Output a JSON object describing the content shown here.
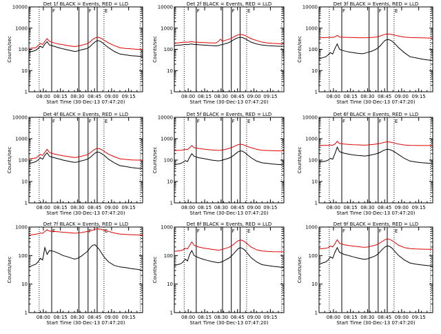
{
  "figure": {
    "ylabel": "Counts/sec",
    "xlabel": "Start Time (30-Dec-13 07:47:20)",
    "ytick_labels": [
      "1",
      "10",
      "100",
      "1000",
      "10000"
    ],
    "xtick_labels": [
      "08:00",
      "08:15",
      "08:30",
      "08:45",
      "09:00",
      "09:15"
    ],
    "flag_letters": [
      "F",
      "F",
      "E"
    ],
    "colors": {
      "events": "#000000",
      "lld": "#e00000",
      "axes": "#000000",
      "background": "#ffffff"
    }
  },
  "chart_data": [
    {
      "type": "line",
      "title": "Det 1f BLACK = Events, RED = LLD",
      "x_minutes": [
        0,
        3,
        6,
        8,
        10,
        12,
        14,
        16,
        18,
        22,
        26,
        30,
        34,
        38,
        40,
        42,
        44,
        46,
        48,
        50,
        52,
        54,
        56,
        58,
        60,
        62,
        64,
        66,
        70,
        75,
        80,
        85,
        90,
        95,
        100
      ],
      "xlim": [
        0,
        100
      ],
      "ylim": [
        1,
        10000
      ],
      "yscale": "log",
      "series": [
        {
          "key": "events",
          "values": [
            75,
            80,
            90,
            110,
            140,
            120,
            180,
            230,
            160,
            140,
            120,
            105,
            95,
            85,
            80,
            82,
            88,
            95,
            100,
            105,
            115,
            140,
            180,
            220,
            260,
            250,
            220,
            180,
            120,
            80,
            60,
            55,
            50,
            48,
            45
          ]
        },
        {
          "key": "lld",
          "values": [
            110,
            115,
            120,
            150,
            190,
            170,
            240,
            320,
            240,
            200,
            180,
            165,
            150,
            140,
            135,
            140,
            145,
            155,
            165,
            175,
            195,
            230,
            290,
            340,
            370,
            360,
            320,
            270,
            200,
            150,
            120,
            110,
            105,
            100,
            100
          ]
        }
      ],
      "vlines_solid": [
        20,
        44,
        52,
        60
      ],
      "vlines_dotted": [
        9,
        66,
        98
      ]
    },
    {
      "type": "line",
      "title": "Det 2f BLACK = Events, RED = LLD",
      "x_minutes": [
        0,
        3,
        6,
        8,
        10,
        12,
        14,
        16,
        18,
        22,
        26,
        30,
        34,
        38,
        40,
        42,
        44,
        46,
        48,
        50,
        52,
        54,
        56,
        58,
        60,
        62,
        64,
        66,
        70,
        75,
        80,
        85,
        90,
        95,
        100
      ],
      "xlim": [
        0,
        100
      ],
      "ylim": [
        1,
        10000
      ],
      "yscale": "log",
      "series": [
        {
          "key": "events",
          "values": [
            150,
            155,
            160,
            165,
            170,
            165,
            175,
            180,
            170,
            165,
            160,
            155,
            150,
            145,
            150,
            160,
            170,
            180,
            195,
            210,
            240,
            280,
            320,
            350,
            370,
            360,
            330,
            290,
            220,
            180,
            160,
            150,
            145,
            140,
            140
          ]
        },
        {
          "key": "lld",
          "values": [
            190,
            200,
            210,
            215,
            220,
            215,
            225,
            235,
            220,
            215,
            210,
            205,
            200,
            200,
            230,
            300,
            240,
            260,
            280,
            300,
            330,
            380,
            430,
            480,
            500,
            490,
            460,
            410,
            320,
            260,
            220,
            200,
            190,
            185,
            180
          ]
        }
      ],
      "vlines_solid": [
        20,
        44,
        52,
        60
      ],
      "vlines_dotted": [
        9,
        66,
        98
      ]
    },
    {
      "type": "line",
      "title": "Det 3f BLACK = Events, RED = LLD",
      "x_minutes": [
        0,
        3,
        6,
        8,
        10,
        12,
        14,
        16,
        18,
        22,
        26,
        30,
        34,
        38,
        40,
        42,
        44,
        46,
        48,
        50,
        52,
        54,
        56,
        58,
        60,
        62,
        64,
        66,
        70,
        75,
        80,
        85,
        90,
        95,
        100
      ],
      "xlim": [
        0,
        100
      ],
      "ylim": [
        1,
        10000
      ],
      "yscale": "log",
      "series": [
        {
          "key": "events",
          "values": [
            35,
            40,
            45,
            55,
            70,
            60,
            110,
            180,
            100,
            85,
            75,
            70,
            65,
            62,
            65,
            70,
            75,
            80,
            90,
            100,
            120,
            150,
            200,
            260,
            290,
            280,
            250,
            200,
            120,
            70,
            45,
            40,
            35,
            32,
            30
          ]
        },
        {
          "key": "lld",
          "values": [
            350,
            355,
            360,
            365,
            370,
            365,
            390,
            450,
            380,
            370,
            365,
            360,
            355,
            350,
            350,
            355,
            360,
            365,
            370,
            380,
            400,
            430,
            470,
            510,
            530,
            520,
            500,
            470,
            420,
            380,
            360,
            355,
            350,
            345,
            340
          ]
        }
      ],
      "vlines_solid": [
        20,
        44,
        52,
        60
      ],
      "vlines_dotted": [
        9,
        66,
        98
      ]
    },
    {
      "type": "line",
      "title": "Det 4f BLACK = Events, RED = LLD",
      "x_minutes": [
        0,
        3,
        6,
        8,
        10,
        12,
        14,
        16,
        18,
        22,
        26,
        30,
        34,
        38,
        40,
        42,
        44,
        46,
        48,
        50,
        52,
        54,
        56,
        58,
        60,
        62,
        64,
        66,
        70,
        75,
        80,
        85,
        90,
        95,
        100
      ],
      "xlim": [
        0,
        100
      ],
      "ylim": [
        1,
        10000
      ],
      "yscale": "log",
      "series": [
        {
          "key": "events",
          "values": [
            70,
            75,
            85,
            100,
            130,
            110,
            170,
            220,
            150,
            130,
            115,
            100,
            90,
            82,
            78,
            80,
            85,
            92,
            98,
            104,
            114,
            135,
            170,
            210,
            240,
            230,
            200,
            170,
            110,
            75,
            55,
            50,
            45,
            42,
            40
          ]
        },
        {
          "key": "lld",
          "values": [
            115,
            120,
            125,
            150,
            185,
            165,
            230,
            320,
            230,
            195,
            175,
            160,
            148,
            138,
            132,
            136,
            142,
            150,
            160,
            170,
            190,
            220,
            270,
            320,
            350,
            340,
            310,
            260,
            190,
            145,
            115,
            108,
            102,
            100,
            100
          ]
        }
      ],
      "vlines_solid": [
        20,
        44,
        52,
        60
      ],
      "vlines_dotted": [
        9,
        66,
        98
      ]
    },
    {
      "type": "line",
      "title": "Det 5f BLACK = Events, RED = LLD",
      "x_minutes": [
        0,
        3,
        6,
        8,
        10,
        12,
        14,
        16,
        18,
        22,
        26,
        30,
        34,
        38,
        40,
        42,
        44,
        46,
        48,
        50,
        52,
        54,
        56,
        58,
        60,
        62,
        64,
        66,
        70,
        75,
        80,
        85,
        90,
        95,
        100
      ],
      "xlim": [
        0,
        100
      ],
      "ylim": [
        1,
        10000
      ],
      "yscale": "log",
      "series": [
        {
          "key": "events",
          "values": [
            60,
            65,
            70,
            80,
            95,
            85,
            140,
            200,
            150,
            130,
            120,
            110,
            100,
            95,
            92,
            95,
            100,
            108,
            115,
            125,
            140,
            165,
            200,
            240,
            270,
            260,
            230,
            190,
            130,
            90,
            75,
            70,
            65,
            62,
            60
          ]
        },
        {
          "key": "lld",
          "values": [
            280,
            285,
            290,
            300,
            320,
            310,
            380,
            480,
            380,
            350,
            330,
            315,
            300,
            290,
            285,
            290,
            300,
            315,
            330,
            350,
            380,
            420,
            470,
            520,
            550,
            540,
            500,
            450,
            380,
            320,
            290,
            280,
            275,
            270,
            270
          ]
        }
      ],
      "vlines_solid": [
        20,
        44,
        52,
        60
      ],
      "vlines_dotted": [
        9,
        66,
        98
      ]
    },
    {
      "type": "line",
      "title": "Det 6f BLACK = Events, RED = LLD",
      "x_minutes": [
        0,
        3,
        6,
        8,
        10,
        12,
        14,
        16,
        18,
        22,
        26,
        30,
        34,
        38,
        40,
        42,
        44,
        46,
        48,
        50,
        52,
        54,
        56,
        58,
        60,
        62,
        64,
        66,
        70,
        75,
        80,
        85,
        90,
        95,
        100
      ],
      "xlim": [
        0,
        100
      ],
      "ylim": [
        1,
        10000
      ],
      "yscale": "log",
      "series": [
        {
          "key": "events",
          "values": [
            80,
            85,
            90,
            100,
            120,
            110,
            200,
            400,
            250,
            210,
            190,
            175,
            165,
            158,
            155,
            158,
            165,
            175,
            185,
            195,
            210,
            235,
            270,
            300,
            320,
            310,
            285,
            250,
            180,
            120,
            90,
            82,
            76,
            72,
            70
          ]
        },
        {
          "key": "lld",
          "values": [
            480,
            485,
            490,
            495,
            500,
            495,
            560,
            750,
            600,
            560,
            540,
            525,
            515,
            505,
            500,
            505,
            515,
            530,
            545,
            560,
            580,
            610,
            650,
            690,
            710,
            700,
            670,
            630,
            560,
            510,
            490,
            485,
            480,
            478,
            475
          ]
        }
      ],
      "vlines_solid": [
        20,
        44,
        52,
        60
      ],
      "vlines_dotted": [
        9,
        66,
        98
      ]
    },
    {
      "type": "line",
      "title": "Det 7f BLACK = Events, RED = LLD",
      "x_minutes": [
        0,
        3,
        6,
        8,
        10,
        12,
        14,
        16,
        18,
        22,
        26,
        30,
        34,
        38,
        40,
        42,
        44,
        46,
        48,
        50,
        52,
        54,
        56,
        58,
        60,
        62,
        64,
        66,
        70,
        75,
        80,
        85,
        90,
        95,
        100
      ],
      "xlim": [
        0,
        100
      ],
      "ylim": [
        1,
        1000
      ],
      "yscale": "log",
      "series": [
        {
          "key": "events",
          "values": [
            40,
            45,
            50,
            60,
            80,
            70,
            190,
            110,
            150,
            140,
            120,
            100,
            90,
            80,
            75,
            78,
            85,
            95,
            110,
            125,
            150,
            190,
            230,
            240,
            200,
            160,
            120,
            90,
            60,
            45,
            40,
            38,
            35,
            33,
            30
          ]
        },
        {
          "key": "lld",
          "values": [
            520,
            540,
            560,
            580,
            620,
            600,
            700,
            800,
            720,
            700,
            680,
            660,
            640,
            620,
            610,
            615,
            625,
            640,
            660,
            680,
            700,
            730,
            780,
            830,
            860,
            850,
            820,
            780,
            700,
            620,
            570,
            550,
            540,
            530,
            520
          ]
        }
      ],
      "vlines_solid": [
        20,
        44,
        52,
        60
      ],
      "vlines_dotted": [
        9,
        66,
        98
      ]
    },
    {
      "type": "line",
      "title": "Det 8f BLACK = Events, RED = LLD",
      "x_minutes": [
        0,
        3,
        6,
        8,
        10,
        12,
        14,
        16,
        18,
        22,
        26,
        30,
        34,
        38,
        40,
        42,
        44,
        46,
        48,
        50,
        52,
        54,
        56,
        58,
        60,
        62,
        64,
        66,
        70,
        75,
        80,
        85,
        90,
        95,
        100
      ],
      "xlim": [
        0,
        100
      ],
      "ylim": [
        1,
        1000
      ],
      "yscale": "log",
      "series": [
        {
          "key": "events",
          "values": [
            45,
            48,
            52,
            60,
            75,
            65,
            110,
            150,
            100,
            85,
            75,
            68,
            62,
            58,
            56,
            58,
            62,
            68,
            75,
            82,
            95,
            115,
            140,
            170,
            190,
            180,
            160,
            130,
            85,
            60,
            48,
            45,
            42,
            40,
            38
          ]
        },
        {
          "key": "lld",
          "values": [
            140,
            145,
            150,
            160,
            180,
            170,
            230,
            300,
            230,
            200,
            185,
            175,
            165,
            158,
            155,
            158,
            165,
            175,
            185,
            195,
            215,
            245,
            285,
            325,
            350,
            340,
            310,
            270,
            200,
            160,
            145,
            140,
            137,
            135,
            135
          ]
        }
      ],
      "vlines_solid": [
        20,
        44,
        52,
        60
      ],
      "vlines_dotted": [
        9,
        66,
        98
      ]
    },
    {
      "type": "line",
      "title": "Det 9f BLACK = Events, RED = LLD",
      "x_minutes": [
        0,
        3,
        6,
        8,
        10,
        12,
        14,
        16,
        18,
        22,
        26,
        30,
        34,
        38,
        40,
        42,
        44,
        46,
        48,
        50,
        52,
        54,
        56,
        58,
        60,
        62,
        64,
        66,
        70,
        75,
        80,
        85,
        90,
        95,
        100
      ],
      "xlim": [
        0,
        100
      ],
      "ylim": [
        1,
        1000
      ],
      "yscale": "log",
      "series": [
        {
          "key": "events",
          "values": [
            50,
            55,
            60,
            70,
            90,
            80,
            130,
            190,
            130,
            110,
            100,
            90,
            82,
            76,
            74,
            76,
            80,
            86,
            92,
            100,
            115,
            140,
            170,
            200,
            220,
            210,
            185,
            150,
            100,
            70,
            55,
            50,
            47,
            45,
            43
          ]
        },
        {
          "key": "lld",
          "values": [
            170,
            175,
            180,
            190,
            215,
            200,
            260,
            360,
            270,
            240,
            225,
            215,
            205,
            198,
            195,
            198,
            205,
            215,
            225,
            235,
            255,
            285,
            320,
            360,
            380,
            370,
            340,
            300,
            230,
            190,
            175,
            170,
            168,
            165,
            165
          ]
        }
      ],
      "vlines_solid": [
        20,
        44,
        52,
        60
      ],
      "vlines_dotted": [
        9,
        66,
        98
      ]
    }
  ]
}
